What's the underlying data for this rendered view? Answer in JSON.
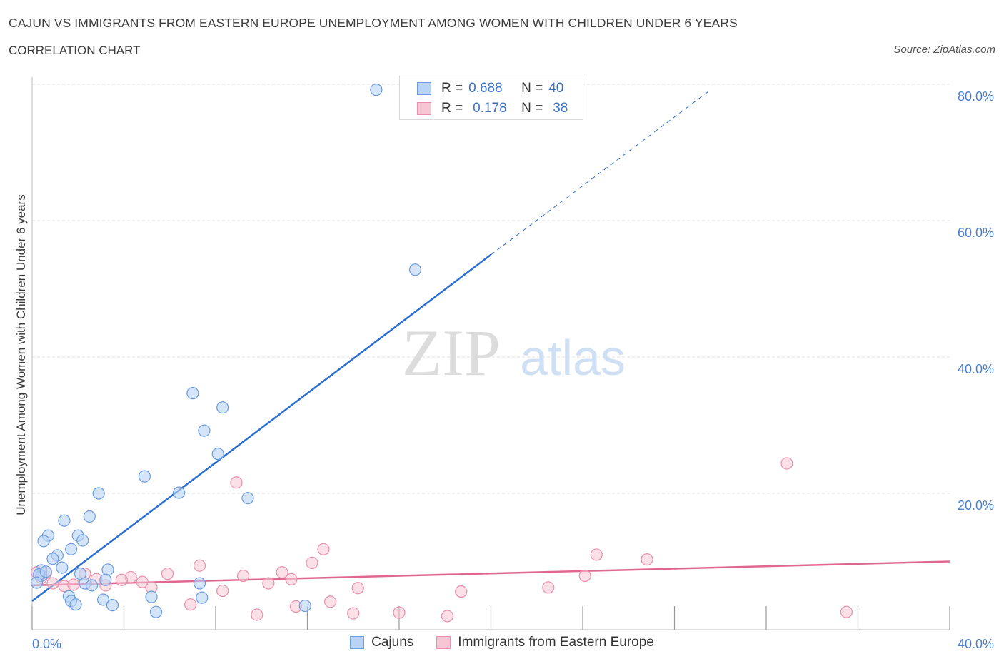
{
  "header": {
    "title": "CAJUN VS IMMIGRANTS FROM EASTERN EUROPE UNEMPLOYMENT AMONG WOMEN WITH CHILDREN UNDER 6 YEARS",
    "subtitle": "CORRELATION CHART",
    "source": "Source: ZipAtlas.com"
  },
  "watermark": {
    "zip": "ZIP",
    "atlas": "atlas"
  },
  "stats_legend": {
    "r_label": "R =",
    "n_label": "N =",
    "rows": [
      {
        "series": "Cajuns",
        "r": "0.688",
        "n": "40"
      },
      {
        "series": "Immigrants from Eastern Europe",
        "r": "0.178",
        "n": "38"
      }
    ]
  },
  "colors": {
    "cajuns_fill": "#b9d3f5",
    "cajuns_stroke": "#6a9be0",
    "cajuns_line": "#2a6fd0",
    "imm_fill": "#f7c6d4",
    "imm_stroke": "#e890ac",
    "imm_line": "#e06890",
    "tick": "#4a7fd0",
    "grid": "#e2e2e2"
  },
  "chart_data": {
    "type": "scatter",
    "title": "CAJUN VS IMMIGRANTS FROM EASTERN EUROPE UNEMPLOYMENT AMONG WOMEN WITH CHILDREN UNDER 6 YEARS",
    "xlabel": "",
    "ylabel": "Unemployment Among Women with Children Under 6 years",
    "xlim": [
      0,
      40
    ],
    "ylim": [
      0,
      80
    ],
    "x_tick_labels": [
      "0.0%",
      "40.0%"
    ],
    "y_tick_labels": [
      "20.0%",
      "40.0%",
      "60.0%",
      "80.0%"
    ],
    "y_ticks": [
      20,
      40,
      60,
      80
    ],
    "grid": true,
    "legend": "bottom-center",
    "series": [
      {
        "name": "Cajuns",
        "points": [
          [
            15.0,
            79.2
          ],
          [
            16.7,
            52.8
          ],
          [
            7.0,
            34.7
          ],
          [
            8.3,
            32.6
          ],
          [
            7.5,
            29.2
          ],
          [
            8.1,
            25.8
          ],
          [
            4.9,
            22.5
          ],
          [
            6.4,
            20.1
          ],
          [
            2.9,
            20.0
          ],
          [
            9.4,
            19.3
          ],
          [
            2.5,
            16.6
          ],
          [
            1.4,
            16.0
          ],
          [
            0.7,
            13.8
          ],
          [
            2.0,
            13.8
          ],
          [
            0.5,
            13.0
          ],
          [
            2.2,
            13.1
          ],
          [
            1.7,
            11.8
          ],
          [
            1.1,
            10.9
          ],
          [
            0.9,
            10.4
          ],
          [
            1.3,
            9.1
          ],
          [
            0.4,
            8.7
          ],
          [
            0.4,
            7.9
          ],
          [
            3.3,
            8.8
          ],
          [
            2.1,
            8.2
          ],
          [
            2.3,
            6.8
          ],
          [
            3.2,
            7.3
          ],
          [
            2.6,
            6.5
          ],
          [
            7.3,
            6.8
          ],
          [
            1.6,
            4.9
          ],
          [
            1.7,
            4.2
          ],
          [
            3.1,
            4.4
          ],
          [
            5.2,
            4.8
          ],
          [
            7.4,
            4.7
          ],
          [
            1.9,
            3.7
          ],
          [
            3.5,
            3.6
          ],
          [
            11.9,
            3.5
          ],
          [
            5.4,
            2.6
          ],
          [
            0.3,
            8.1
          ],
          [
            0.2,
            6.9
          ],
          [
            0.6,
            8.5
          ]
        ],
        "trend": {
          "x0": 0,
          "y0": 4.2,
          "x1": 20,
          "y1": 55.0,
          "dashed_to_x": 29.5,
          "dashed_to_y": 79.0
        }
      },
      {
        "name": "Immigrants from Eastern Europe",
        "points": [
          [
            32.9,
            24.4
          ],
          [
            8.9,
            21.6
          ],
          [
            12.7,
            11.8
          ],
          [
            24.6,
            11.0
          ],
          [
            26.8,
            10.3
          ],
          [
            12.2,
            9.8
          ],
          [
            7.3,
            9.4
          ],
          [
            10.9,
            8.4
          ],
          [
            5.9,
            8.2
          ],
          [
            2.3,
            8.2
          ],
          [
            9.2,
            7.9
          ],
          [
            24.1,
            7.9
          ],
          [
            4.3,
            7.7
          ],
          [
            2.8,
            7.4
          ],
          [
            3.9,
            7.3
          ],
          [
            4.8,
            7.0
          ],
          [
            11.3,
            7.4
          ],
          [
            10.3,
            6.8
          ],
          [
            0.6,
            8.3
          ],
          [
            0.4,
            7.6
          ],
          [
            0.9,
            6.8
          ],
          [
            1.4,
            6.4
          ],
          [
            1.8,
            6.6
          ],
          [
            3.2,
            6.5
          ],
          [
            5.2,
            6.2
          ],
          [
            14.2,
            6.1
          ],
          [
            22.5,
            6.2
          ],
          [
            8.3,
            5.7
          ],
          [
            18.7,
            5.6
          ],
          [
            13.0,
            4.1
          ],
          [
            11.5,
            3.4
          ],
          [
            6.9,
            3.7
          ],
          [
            9.8,
            2.2
          ],
          [
            14.0,
            2.4
          ],
          [
            16.0,
            2.5
          ],
          [
            18.1,
            2.0
          ],
          [
            35.5,
            2.6
          ],
          [
            0.2,
            8.4
          ]
        ],
        "trend": {
          "x0": 0,
          "y0": 6.5,
          "x1": 40,
          "y1": 10.0
        }
      }
    ]
  }
}
